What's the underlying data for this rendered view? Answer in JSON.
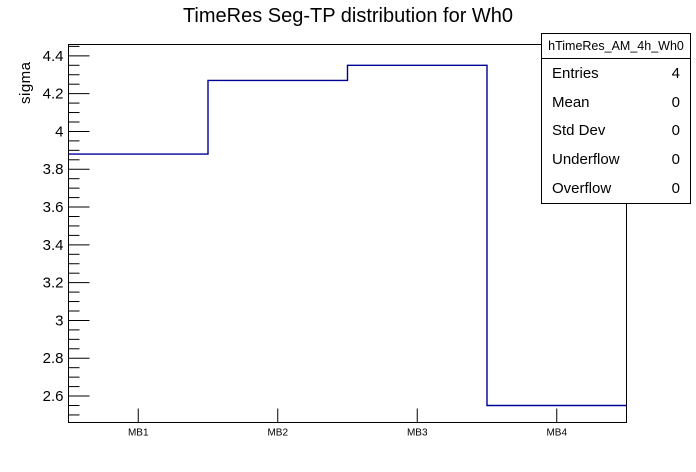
{
  "title": "TimeRes Seg-TP distribution for Wh0",
  "colors": {
    "histogram_line": "#000099",
    "axis": "#000000",
    "text": "#000000",
    "background": "#ffffff",
    "stats_border": "#000000"
  },
  "stats_box": {
    "header": "hTimeRes_AM_4h_Wh0",
    "rows": [
      {
        "label": "Entries",
        "value": "4"
      },
      {
        "label": "Mean",
        "value": "0"
      },
      {
        "label": "Std Dev",
        "value": "0"
      },
      {
        "label": "Underflow",
        "value": "0"
      },
      {
        "label": "Overflow",
        "value": "0"
      }
    ]
  },
  "chart_data": {
    "type": "bar",
    "style": "step-outline-histogram",
    "title": "TimeRes Seg-TP distribution for Wh0",
    "xlabel": "",
    "ylabel": "sigma",
    "categories": [
      "MB1",
      "MB2",
      "MB3",
      "MB4"
    ],
    "values": [
      3.88,
      4.27,
      4.35,
      2.55
    ],
    "ylim": [
      2.46,
      4.46
    ],
    "y_major_ticks": [
      2.6,
      2.8,
      3.0,
      3.2,
      3.4,
      3.6,
      3.8,
      4.0,
      4.2,
      4.4
    ],
    "y_minor_step": 0.05,
    "grid": false,
    "legend": false
  }
}
